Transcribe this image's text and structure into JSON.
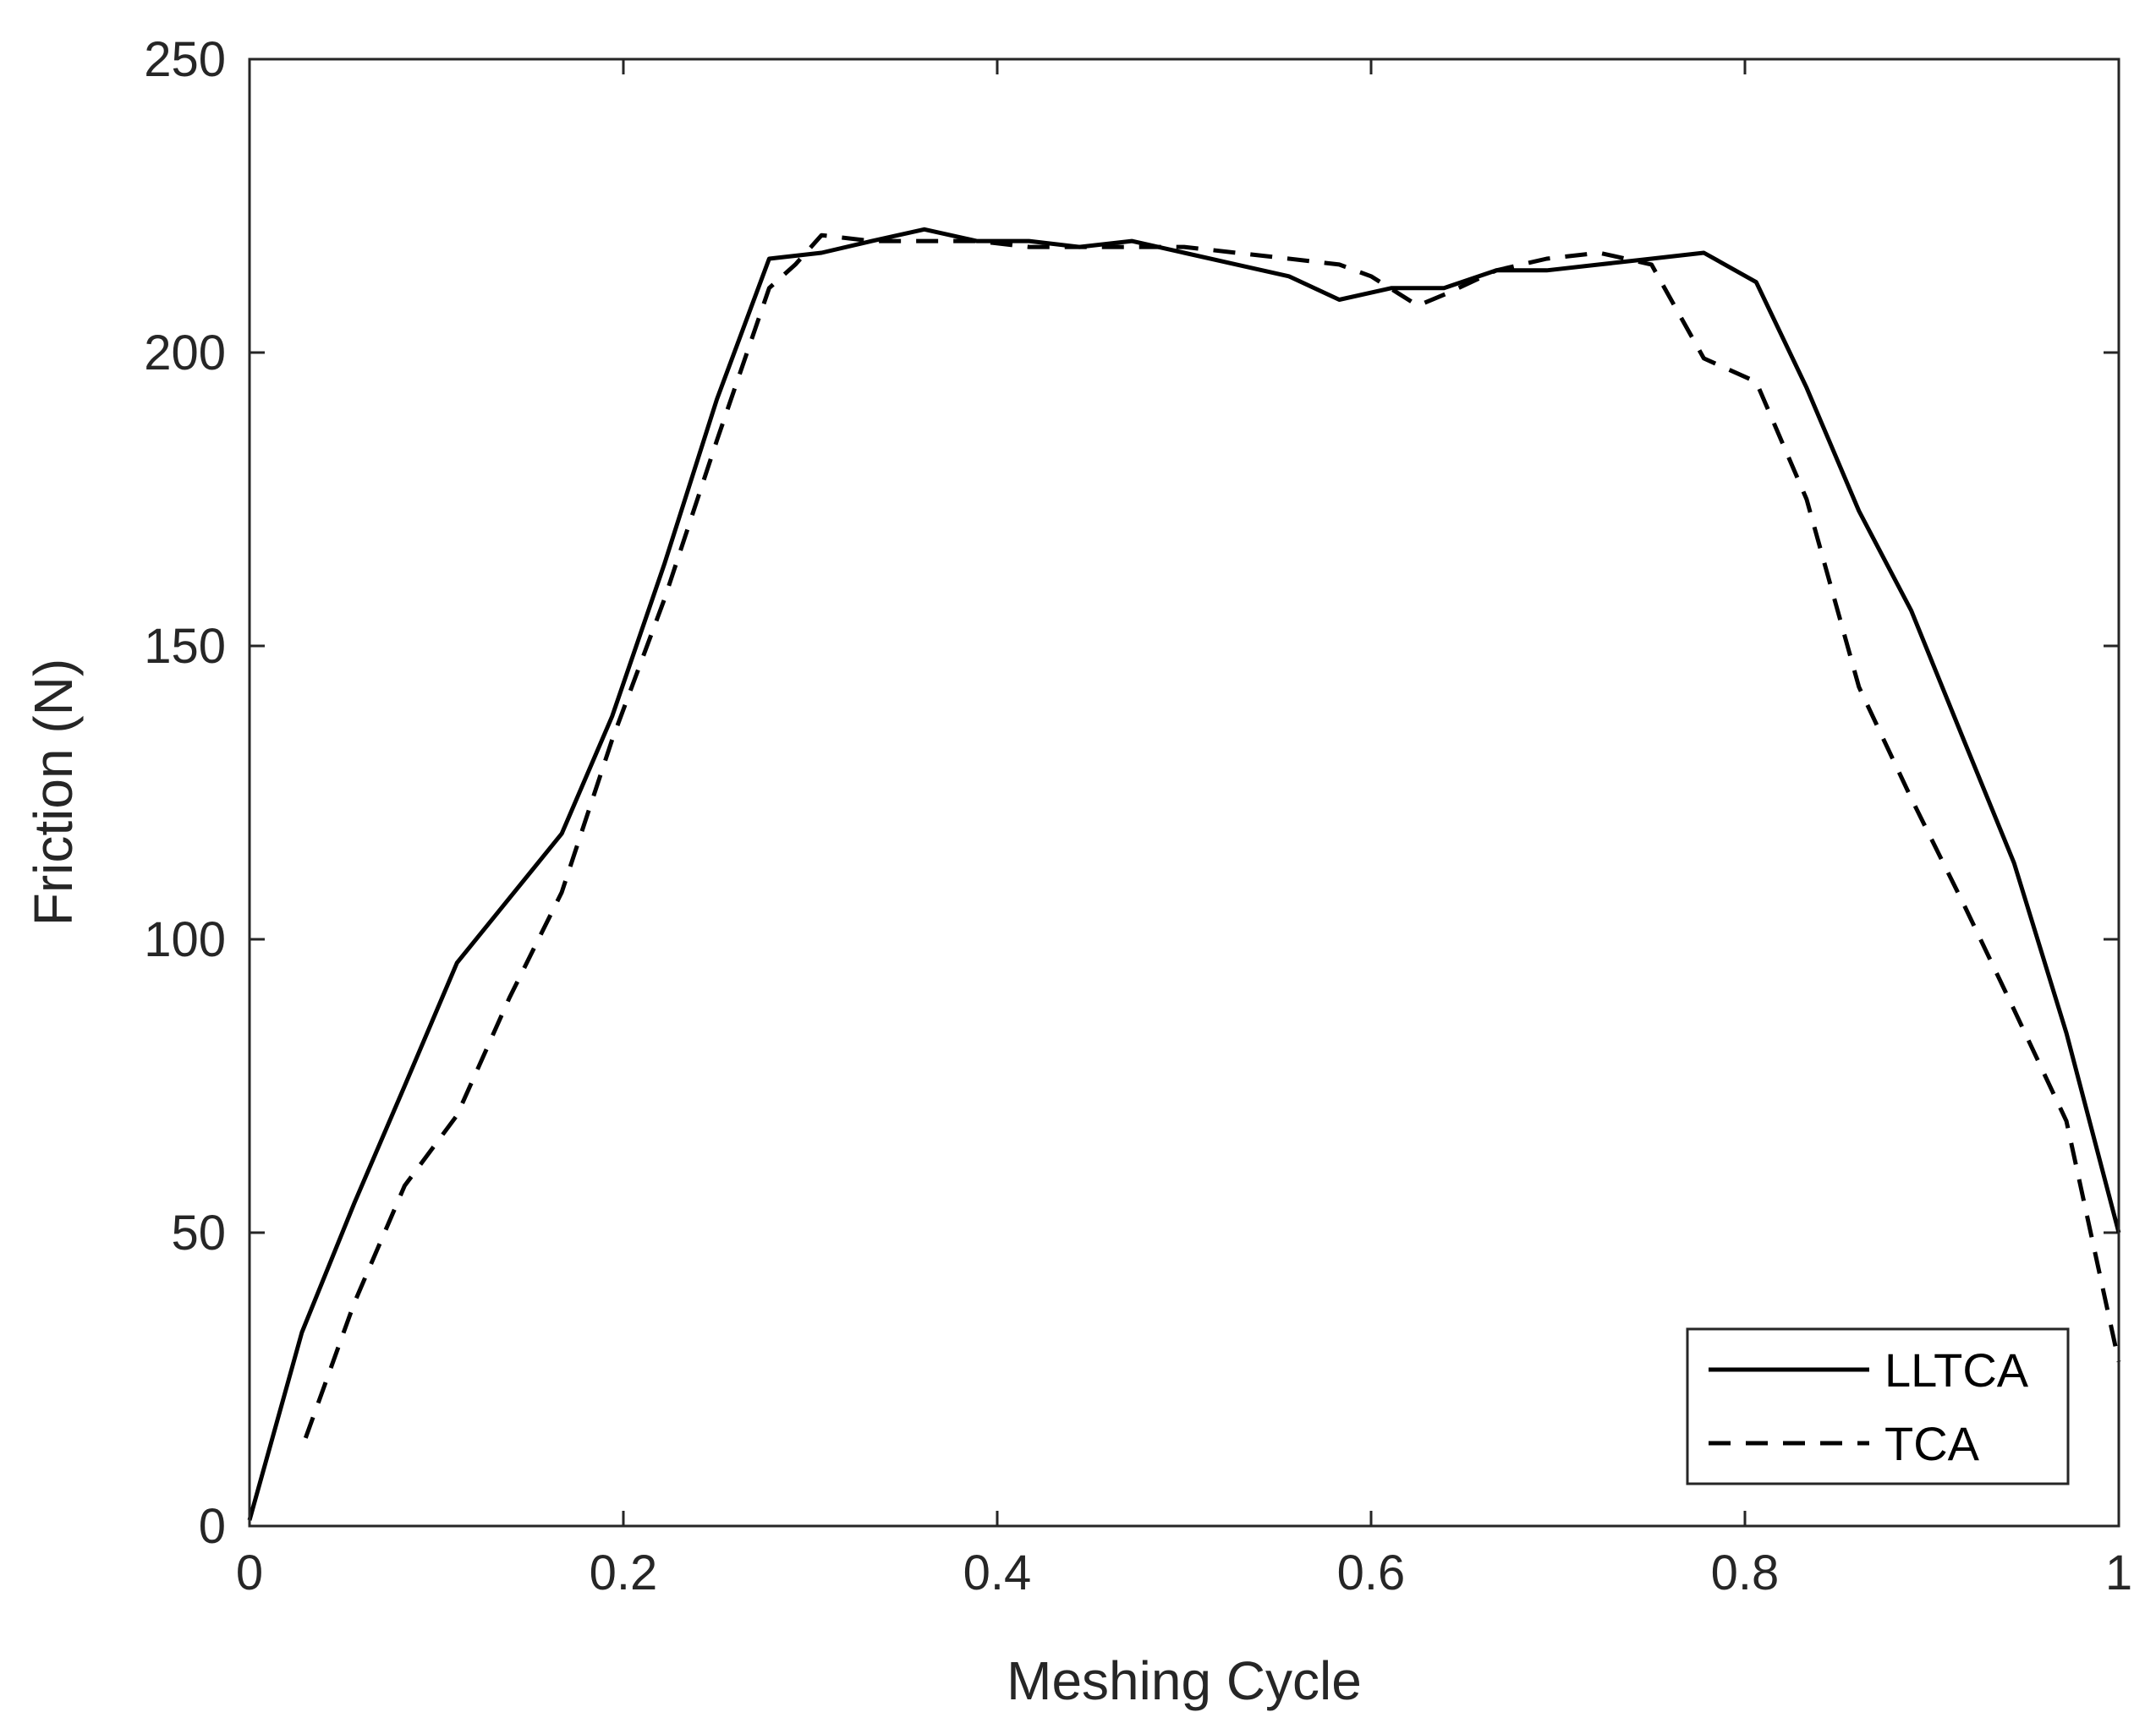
{
  "chart_data": {
    "type": "line",
    "title": "",
    "xlabel": "Meshing Cycle",
    "ylabel": "Friction (N)",
    "xlim": [
      0,
      1
    ],
    "ylim": [
      0,
      250
    ],
    "xticks": [
      0,
      0.2,
      0.4,
      0.6,
      0.8,
      1
    ],
    "xtick_labels": [
      "0",
      "0.2",
      "0.4",
      "0.6",
      "0.8",
      "1"
    ],
    "yticks": [
      0,
      50,
      100,
      150,
      200,
      250
    ],
    "ytick_labels": [
      "0",
      "50",
      "100",
      "150",
      "200",
      "250"
    ],
    "grid": false,
    "legend_position": "bottom-right",
    "series": [
      {
        "name": "LLTCA",
        "style": "solid",
        "color": "#000000",
        "x": [
          0,
          0.028,
          0.056,
          0.083,
          0.111,
          0.139,
          0.167,
          0.194,
          0.222,
          0.25,
          0.278,
          0.306,
          0.333,
          0.361,
          0.389,
          0.417,
          0.444,
          0.472,
          0.5,
          0.528,
          0.556,
          0.583,
          0.611,
          0.639,
          0.667,
          0.694,
          0.722,
          0.75,
          0.778,
          0.806,
          0.833,
          0.861,
          0.889,
          0.917,
          0.944,
          0.972,
          1
        ],
        "y": [
          1,
          33,
          55,
          75,
          96,
          107,
          118,
          138,
          164,
          192,
          216,
          217,
          219,
          221,
          219,
          219,
          218,
          219,
          217,
          215,
          213,
          209,
          211,
          211,
          214,
          214,
          215,
          216,
          217,
          212,
          194,
          173,
          156,
          134,
          113,
          84,
          50
        ]
      },
      {
        "name": "TCA",
        "style": "dashed",
        "color": "#000000",
        "x": [
          0.03,
          0.056,
          0.083,
          0.111,
          0.139,
          0.167,
          0.194,
          0.222,
          0.25,
          0.278,
          0.292,
          0.306,
          0.333,
          0.361,
          0.389,
          0.417,
          0.444,
          0.472,
          0.5,
          0.528,
          0.556,
          0.583,
          0.6,
          0.625,
          0.64,
          0.667,
          0.694,
          0.722,
          0.75,
          0.778,
          0.806,
          0.833,
          0.861,
          0.889,
          0.917,
          0.944,
          0.972,
          1
        ],
        "y": [
          15,
          38,
          58,
          70,
          90,
          108,
          134,
          158,
          185,
          211,
          215,
          220,
          219,
          219,
          219,
          218,
          218,
          218,
          218,
          217,
          216,
          215,
          213,
          208,
          210,
          214,
          216,
          217,
          215,
          199,
          195,
          175,
          143,
          124,
          106,
          88,
          69,
          28
        ]
      }
    ]
  }
}
